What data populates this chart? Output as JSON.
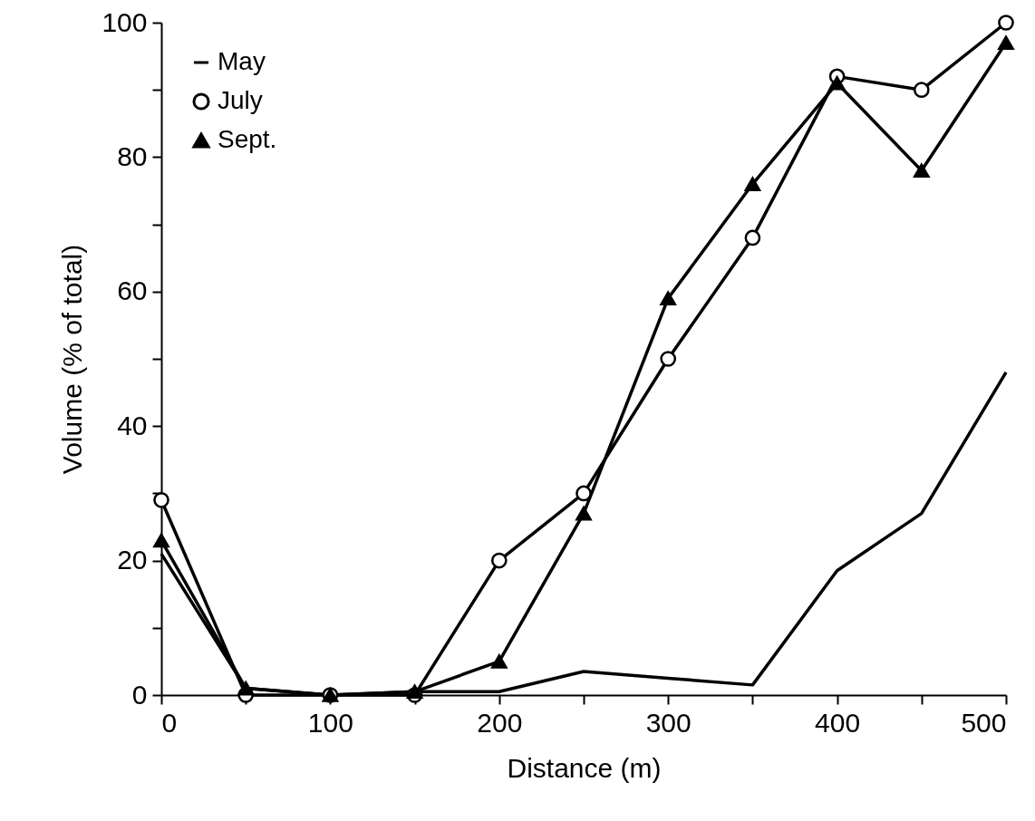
{
  "chart_data": {
    "type": "line",
    "xlabel": "Distance  (m)",
    "ylabel": "Volume (% of total)",
    "x": [
      0,
      50,
      100,
      150,
      200,
      250,
      300,
      350,
      400,
      450,
      500
    ],
    "series": [
      {
        "name": "May",
        "color": "#000000",
        "marker": "none",
        "values": [
          21,
          1,
          0,
          0.5,
          0.5,
          3.5,
          2.5,
          1.5,
          18.5,
          27,
          48
        ]
      },
      {
        "name": "July",
        "color": "#000000",
        "marker": "circle",
        "values": [
          29,
          0,
          0,
          0,
          20,
          30,
          50,
          68,
          92,
          90,
          100
        ]
      },
      {
        "name": "Sept.",
        "color": "#000000",
        "marker": "triangle",
        "values": [
          23,
          1,
          0,
          0.5,
          5,
          27,
          59,
          76,
          91,
          78,
          97
        ]
      }
    ],
    "xlim": [
      0,
      500
    ],
    "xticks": [
      0,
      {
        "value": 50,
        "label": null
      },
      100,
      {
        "value": 150,
        "label": null
      },
      200,
      {
        "value": 250,
        "label": null
      },
      300,
      {
        "value": 350,
        "label": null
      },
      400,
      {
        "value": 450,
        "label": null
      },
      500
    ],
    "ylim": [
      0,
      100
    ],
    "yticks": [
      0,
      {
        "value": 10,
        "label": null
      },
      20,
      {
        "value": 30,
        "label": null
      },
      40,
      {
        "value": 50,
        "label": null
      },
      60,
      {
        "value": 70,
        "label": null
      },
      80,
      {
        "value": 90,
        "label": null
      },
      100
    ],
    "grid": false,
    "legend": "top left",
    "line_style": "solid"
  }
}
